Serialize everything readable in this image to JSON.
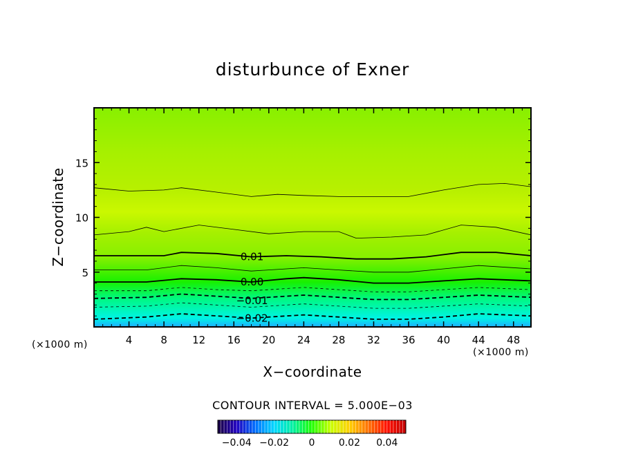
{
  "chart_data": {
    "type": "heatmap",
    "title": "disturbunce of Exner",
    "xlabel": "X−coordinate",
    "ylabel": "Z−coordinate",
    "x_unit_left": "(×1000 m)",
    "x_unit_right": "(×1000 m)",
    "xlim": [
      0,
      50
    ],
    "ylim": [
      0,
      20
    ],
    "x_ticks": [
      4,
      8,
      12,
      16,
      20,
      24,
      28,
      32,
      36,
      40,
      44,
      48
    ],
    "y_ticks": [
      5,
      10,
      15
    ],
    "contour_interval_text": "CONTOUR INTERVAL = 5.000E−03",
    "contour_levels": [
      -0.025,
      -0.02,
      -0.015,
      -0.01,
      -0.005,
      0.0,
      0.005,
      0.01,
      0.015,
      0.02
    ],
    "contour_line_labels": [
      {
        "text": "0.01",
        "x": 16.5,
        "z": 6.4
      },
      {
        "text": "0.00",
        "x": 16.5,
        "z": 4.1
      },
      {
        "text": "−0.01",
        "x": 16.5,
        "z": 2.4
      },
      {
        "text": "−0.02",
        "x": 16.5,
        "z": 0.8
      }
    ],
    "contour_lines": [
      {
        "level": 0.02,
        "style": "thin",
        "points": [
          [
            0,
            12.7
          ],
          [
            4,
            12.4
          ],
          [
            8,
            12.5
          ],
          [
            10,
            12.7
          ],
          [
            14,
            12.3
          ],
          [
            18,
            11.9
          ],
          [
            21,
            12.1
          ],
          [
            24,
            12.0
          ],
          [
            28,
            11.9
          ],
          [
            32,
            11.9
          ],
          [
            36,
            11.9
          ],
          [
            40,
            12.5
          ],
          [
            44,
            13.0
          ],
          [
            47,
            13.1
          ],
          [
            50,
            12.8
          ]
        ]
      },
      {
        "level": 0.015,
        "style": "thin",
        "points": [
          [
            0,
            8.4
          ],
          [
            4,
            8.7
          ],
          [
            6,
            9.1
          ],
          [
            8,
            8.7
          ],
          [
            12,
            9.3
          ],
          [
            16,
            8.9
          ],
          [
            20,
            8.5
          ],
          [
            24,
            8.7
          ],
          [
            28,
            8.7
          ],
          [
            30,
            8.1
          ],
          [
            34,
            8.2
          ],
          [
            38,
            8.4
          ],
          [
            42,
            9.3
          ],
          [
            46,
            9.1
          ],
          [
            50,
            8.4
          ]
        ]
      },
      {
        "level": 0.01,
        "style": "thick",
        "points": [
          [
            0,
            6.5
          ],
          [
            4,
            6.5
          ],
          [
            8,
            6.5
          ],
          [
            10,
            6.8
          ],
          [
            14,
            6.7
          ],
          [
            18,
            6.4
          ],
          [
            22,
            6.5
          ],
          [
            26,
            6.4
          ],
          [
            30,
            6.2
          ],
          [
            34,
            6.2
          ],
          [
            38,
            6.4
          ],
          [
            42,
            6.8
          ],
          [
            46,
            6.8
          ],
          [
            50,
            6.5
          ]
        ]
      },
      {
        "level": 0.005,
        "style": "thin",
        "points": [
          [
            0,
            5.2
          ],
          [
            6,
            5.2
          ],
          [
            10,
            5.6
          ],
          [
            14,
            5.4
          ],
          [
            18,
            5.1
          ],
          [
            24,
            5.4
          ],
          [
            28,
            5.2
          ],
          [
            32,
            5.0
          ],
          [
            36,
            5.0
          ],
          [
            40,
            5.3
          ],
          [
            44,
            5.6
          ],
          [
            50,
            5.3
          ]
        ]
      },
      {
        "level": 0.0,
        "style": "thick",
        "points": [
          [
            0,
            4.1
          ],
          [
            6,
            4.1
          ],
          [
            10,
            4.4
          ],
          [
            14,
            4.3
          ],
          [
            18,
            4.1
          ],
          [
            22,
            4.4
          ],
          [
            24,
            4.5
          ],
          [
            28,
            4.3
          ],
          [
            32,
            4.0
          ],
          [
            36,
            4.0
          ],
          [
            40,
            4.2
          ],
          [
            44,
            4.4
          ],
          [
            50,
            4.2
          ]
        ]
      },
      {
        "level": -0.005,
        "style": "thin-dashed",
        "points": [
          [
            0,
            3.3
          ],
          [
            6,
            3.3
          ],
          [
            10,
            3.6
          ],
          [
            14,
            3.4
          ],
          [
            18,
            3.3
          ],
          [
            24,
            3.6
          ],
          [
            28,
            3.4
          ],
          [
            32,
            3.2
          ],
          [
            36,
            3.2
          ],
          [
            40,
            3.4
          ],
          [
            44,
            3.6
          ],
          [
            50,
            3.4
          ]
        ]
      },
      {
        "level": -0.01,
        "style": "thick-dashed",
        "points": [
          [
            0,
            2.6
          ],
          [
            6,
            2.7
          ],
          [
            10,
            3.0
          ],
          [
            14,
            2.8
          ],
          [
            18,
            2.6
          ],
          [
            24,
            2.9
          ],
          [
            28,
            2.7
          ],
          [
            32,
            2.5
          ],
          [
            36,
            2.5
          ],
          [
            40,
            2.7
          ],
          [
            44,
            2.9
          ],
          [
            50,
            2.7
          ]
        ]
      },
      {
        "level": -0.015,
        "style": "thin-dashed",
        "points": [
          [
            0,
            1.8
          ],
          [
            6,
            1.9
          ],
          [
            10,
            2.2
          ],
          [
            14,
            2.0
          ],
          [
            18,
            1.8
          ],
          [
            24,
            2.1
          ],
          [
            28,
            1.9
          ],
          [
            32,
            1.7
          ],
          [
            36,
            1.7
          ],
          [
            40,
            1.9
          ],
          [
            44,
            2.1
          ],
          [
            50,
            1.9
          ]
        ]
      },
      {
        "level": -0.02,
        "style": "thick-dashed",
        "points": [
          [
            0,
            0.7
          ],
          [
            6,
            0.9
          ],
          [
            10,
            1.2
          ],
          [
            14,
            1.0
          ],
          [
            18,
            0.8
          ],
          [
            24,
            1.1
          ],
          [
            28,
            0.9
          ],
          [
            32,
            0.7
          ],
          [
            36,
            0.7
          ],
          [
            40,
            0.9
          ],
          [
            44,
            1.2
          ],
          [
            50,
            1.0
          ]
        ]
      }
    ],
    "colorbar": {
      "range": [
        -0.05,
        0.05
      ],
      "ticks": [
        -0.04,
        -0.02,
        0,
        0.02,
        0.04
      ],
      "tick_labels": [
        "−0.04",
        "−0.02",
        "0",
        "0.02",
        "0.04"
      ],
      "stops": [
        "#1a0040",
        "#2000c0",
        "#0070ff",
        "#00d8ff",
        "#00f0a0",
        "#20ff00",
        "#c8ff00",
        "#ffd000",
        "#ff7000",
        "#ff1000",
        "#c00000"
      ]
    },
    "colormap": [
      {
        "v": -0.03,
        "color": "#1eaeff"
      },
      {
        "v": -0.025,
        "color": "#00e0ff"
      },
      {
        "v": -0.02,
        "color": "#00f4e4"
      },
      {
        "v": -0.015,
        "color": "#00f8b4"
      },
      {
        "v": -0.01,
        "color": "#00f880"
      },
      {
        "v": -0.005,
        "color": "#00f040"
      },
      {
        "v": 0.0,
        "color": "#18f000"
      },
      {
        "v": 0.005,
        "color": "#58f000"
      },
      {
        "v": 0.01,
        "color": "#88f000"
      },
      {
        "v": 0.015,
        "color": "#a6f000"
      },
      {
        "v": 0.02,
        "color": "#b8f000"
      },
      {
        "v": 0.025,
        "color": "#caf800"
      }
    ]
  }
}
